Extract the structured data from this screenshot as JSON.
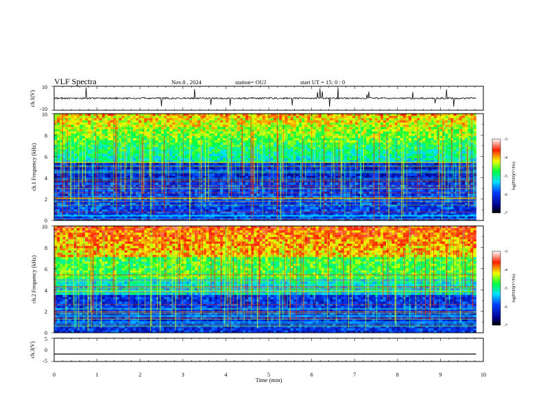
{
  "header": {
    "title": "VLF Spectra",
    "date": "Nov.8 , 2024",
    "station": "station= OUJ",
    "start": "start UT = 15: 0 : 0"
  },
  "chart_data": [
    {
      "type": "line",
      "panel": "ch1-waveform",
      "ylabel": "ch.1(V)",
      "ylim": [
        -10,
        10
      ],
      "yticks": [
        "10",
        "-10"
      ],
      "baseline": 0,
      "xlim": [
        0,
        10
      ]
    },
    {
      "type": "heatmap",
      "panel": "ch1-spectrogram",
      "ylabel": "ch.1 Frequency (kHz)",
      "ylim": [
        0,
        10
      ],
      "yticks": [
        "0",
        "2",
        "4",
        "6",
        "8",
        "10"
      ],
      "xlim": [
        0,
        10
      ],
      "data_end_min": 9.83,
      "colorbar": {
        "label": "log(PSD)(V²/Hz)",
        "range": [
          -7,
          -3
        ],
        "ticks": [
          "-3",
          "-4",
          "-5",
          "-6",
          "-7"
        ]
      }
    },
    {
      "type": "heatmap",
      "panel": "ch2-spectrogram",
      "ylabel": "ch.2 Frequency (kHz)",
      "ylim": [
        0,
        10
      ],
      "yticks": [
        "0",
        "2",
        "4",
        "6",
        "8",
        "10"
      ],
      "xlim": [
        0,
        10
      ],
      "data_end_min": 9.83,
      "colorbar": {
        "label": "log(PSD)(V²/Hz)",
        "range": [
          -7,
          -3
        ],
        "ticks": [
          "-3",
          "-4",
          "-5",
          "-6",
          "-7"
        ]
      }
    },
    {
      "type": "line",
      "panel": "ch3-waveform",
      "ylabel": "ch.3(V)",
      "ylim": [
        -5,
        5
      ],
      "yticks": [
        "5",
        "0",
        "-5"
      ],
      "baseline": -1.8,
      "xlim": [
        0,
        10
      ]
    }
  ],
  "xaxis": {
    "label": "Time (min)",
    "ticks": [
      "0",
      "1",
      "2",
      "3",
      "4",
      "5",
      "6",
      "7",
      "8",
      "9",
      "10"
    ]
  },
  "colors": {
    "spec_low": "#00008b",
    "spec_mid": "#00ff66",
    "spec_high": "#ff0000",
    "trace": "#000000"
  }
}
